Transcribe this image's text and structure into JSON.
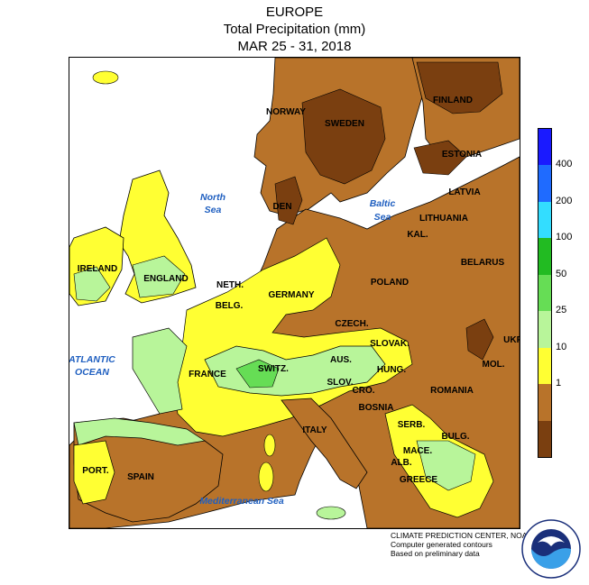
{
  "title": {
    "line1": "EUROPE",
    "line2": "Total Precipitation (mm)",
    "line3": "MAR 25 - 31, 2018"
  },
  "colors": {
    "water": "#ffffff",
    "dark_brown": "#7a3f10",
    "brown": "#b8732a",
    "yellow": "#ffff33",
    "light_green": "#b8f59a",
    "green": "#66dd55",
    "dark_green": "#22bb22",
    "cyan": "#33ddff",
    "blue_light": "#1f6bff",
    "blue_dark": "#1a1aff",
    "contour": "#000000"
  },
  "legend": {
    "levels": [
      "400",
      "200",
      "100",
      "50",
      "25",
      "10",
      "1"
    ],
    "bands": [
      "#1a1aff",
      "#1f6bff",
      "#33ddff",
      "#22bb22",
      "#66dd55",
      "#b8f59a",
      "#ffff33",
      "#b8732a",
      "#7a3f10"
    ]
  },
  "labels": {
    "norway": "NORWAY",
    "sweden": "SWEDEN",
    "finland": "FINLAND",
    "estonia": "ESTONIA",
    "latvia": "LATVIA",
    "lithuania": "LITHUANIA",
    "kal": "KAL.",
    "den": "DEN",
    "ireland": "IRELAND",
    "england": "ENGLAND",
    "neth": "NETH.",
    "belg": "BELG.",
    "germany": "GERMANY",
    "poland": "POLAND",
    "belarus": "BELARUS",
    "czech": "CZECH.",
    "slovak": "SLOVAK.",
    "ukr": "UKR",
    "france": "FRANCE",
    "switz": "SWITZ.",
    "aus": "AUS.",
    "hung": "HUNG.",
    "slov": "SLOV.",
    "cro": "CRO.",
    "bosnia": "BOSNIA",
    "mol": "MOL.",
    "romania": "ROMANIA",
    "serb": "SERB.",
    "bulg": "BULG.",
    "mace": "MACE.",
    "alb": "ALB.",
    "greece": "GREECE",
    "italy": "ITALY",
    "port": "PORT.",
    "spain": "SPAIN"
  },
  "seas": {
    "north": [
      "North",
      "Sea"
    ],
    "baltic": [
      "Baltic",
      "Sea"
    ],
    "atlantic": [
      "ATLANTIC",
      "OCEAN"
    ],
    "mediterranean": "Mediterranean Sea"
  },
  "credits": {
    "line1": "CLIMATE PREDICTION CENTER, NOAA",
    "line2": "Computer generated contours",
    "line3": "Based on preliminary data"
  },
  "logo": {
    "text": "NOAA",
    "ring": "NATIONAL OCEANIC AND ATMOSPHERIC ADMINISTRATION · U.S. DEPARTMENT OF COMMERCE"
  }
}
